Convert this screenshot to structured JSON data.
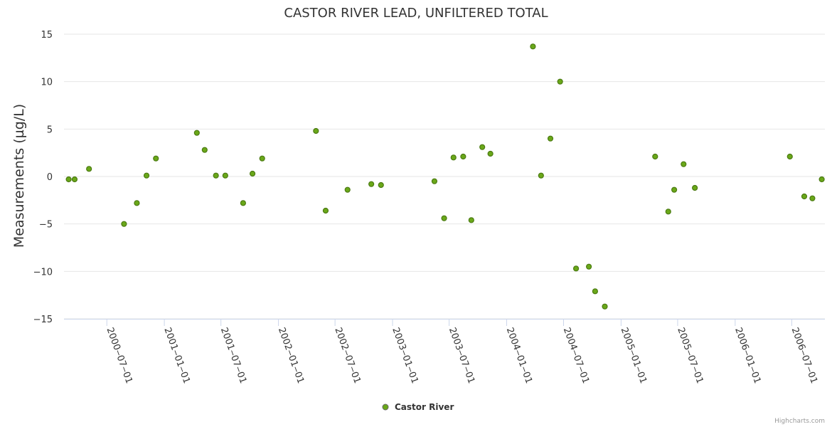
{
  "chart_data": {
    "type": "scatter",
    "title": "CASTOR RIVER LEAD, UNFILTERED TOTAL",
    "xlabel": "",
    "ylabel": "Measurements (µg/L)",
    "ylim": [
      -15,
      15
    ],
    "yticks": [
      -15,
      -10,
      -5,
      0,
      5,
      10,
      15
    ],
    "xlim": [
      "2000-02-15",
      "2006-10-15"
    ],
    "xticks": [
      "2000-07-01",
      "2001-01-01",
      "2001-07-01",
      "2002-01-01",
      "2002-07-01",
      "2003-01-01",
      "2003-07-01",
      "2004-01-01",
      "2004-07-01",
      "2005-01-01",
      "2005-07-01",
      "2006-01-01",
      "2006-07-01"
    ],
    "grid": "horizontal",
    "legend_position": "bottom-center",
    "series": [
      {
        "name": "Castor River",
        "color": "#6aa819",
        "points": [
          [
            "2000-03-01",
            -0.3
          ],
          [
            "2000-03-20",
            -0.3
          ],
          [
            "2000-05-05",
            0.8
          ],
          [
            "2000-08-25",
            -5.0
          ],
          [
            "2000-10-05",
            -2.8
          ],
          [
            "2000-11-05",
            0.1
          ],
          [
            "2000-12-05",
            1.9
          ],
          [
            "2001-04-15",
            4.6
          ],
          [
            "2001-05-10",
            2.8
          ],
          [
            "2001-06-15",
            0.1
          ],
          [
            "2001-07-15",
            0.1
          ],
          [
            "2001-09-10",
            -2.8
          ],
          [
            "2001-10-10",
            0.3
          ],
          [
            "2001-11-10",
            1.9
          ],
          [
            "2002-05-01",
            4.8
          ],
          [
            "2002-06-01",
            -3.6
          ],
          [
            "2002-08-10",
            -1.4
          ],
          [
            "2002-10-25",
            -0.8
          ],
          [
            "2002-11-25",
            -0.9
          ],
          [
            "2003-05-15",
            -0.5
          ],
          [
            "2003-06-15",
            -4.4
          ],
          [
            "2003-07-15",
            2.0
          ],
          [
            "2003-08-15",
            2.1
          ],
          [
            "2003-09-10",
            -4.6
          ],
          [
            "2003-10-15",
            3.1
          ],
          [
            "2003-11-10",
            2.4
          ],
          [
            "2004-03-25",
            13.7
          ],
          [
            "2004-04-20",
            0.1
          ],
          [
            "2004-05-20",
            4.0
          ],
          [
            "2004-06-20",
            10.0
          ],
          [
            "2004-08-10",
            -9.7
          ],
          [
            "2004-09-20",
            -9.5
          ],
          [
            "2004-10-10",
            -12.1
          ],
          [
            "2004-11-10",
            -13.7
          ],
          [
            "2005-04-20",
            2.1
          ],
          [
            "2005-06-01",
            -3.7
          ],
          [
            "2005-06-20",
            -1.4
          ],
          [
            "2005-07-20",
            1.3
          ],
          [
            "2005-08-25",
            -1.2
          ],
          [
            "2006-06-25",
            2.1
          ],
          [
            "2006-08-10",
            -2.1
          ],
          [
            "2006-09-05",
            -2.3
          ],
          [
            "2006-10-05",
            -0.3
          ]
        ]
      }
    ],
    "credit": "Highcharts.com"
  }
}
